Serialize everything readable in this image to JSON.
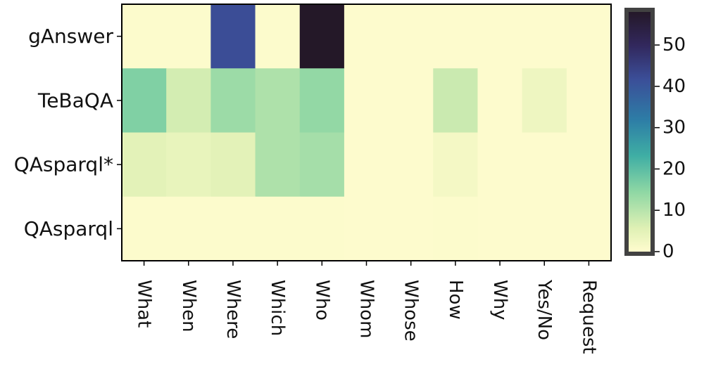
{
  "chart_data": {
    "type": "heatmap",
    "x_categories": [
      "What",
      "When",
      "Where",
      "Which",
      "Who",
      "Whom",
      "Whose",
      "How",
      "Why",
      "Yes/No",
      "Request"
    ],
    "y_categories": [
      "gAnswer",
      "TeBaQA",
      "QAsparql*",
      "QAsparql"
    ],
    "values": [
      [
        0.5,
        0.5,
        42,
        0.5,
        58,
        0.3,
        0.3,
        0.3,
        0.3,
        0.3,
        0.3
      ],
      [
        16,
        7,
        13,
        11,
        14,
        0.3,
        0.3,
        8,
        0.3,
        3,
        0.3
      ],
      [
        5,
        4,
        5,
        11,
        12,
        0.3,
        0.3,
        2,
        0.3,
        0.3,
        0.3
      ],
      [
        0.5,
        0.5,
        0.5,
        0.5,
        0.5,
        0.3,
        0.3,
        0.5,
        0.3,
        0.3,
        0.3
      ]
    ],
    "colorbar": {
      "min": 0,
      "max": 58,
      "ticks": [
        0,
        10,
        20,
        30,
        40,
        50
      ],
      "colormap": "YlGnBu-dark (cream to navy)"
    },
    "title": "",
    "xlabel": "",
    "ylabel": ""
  }
}
